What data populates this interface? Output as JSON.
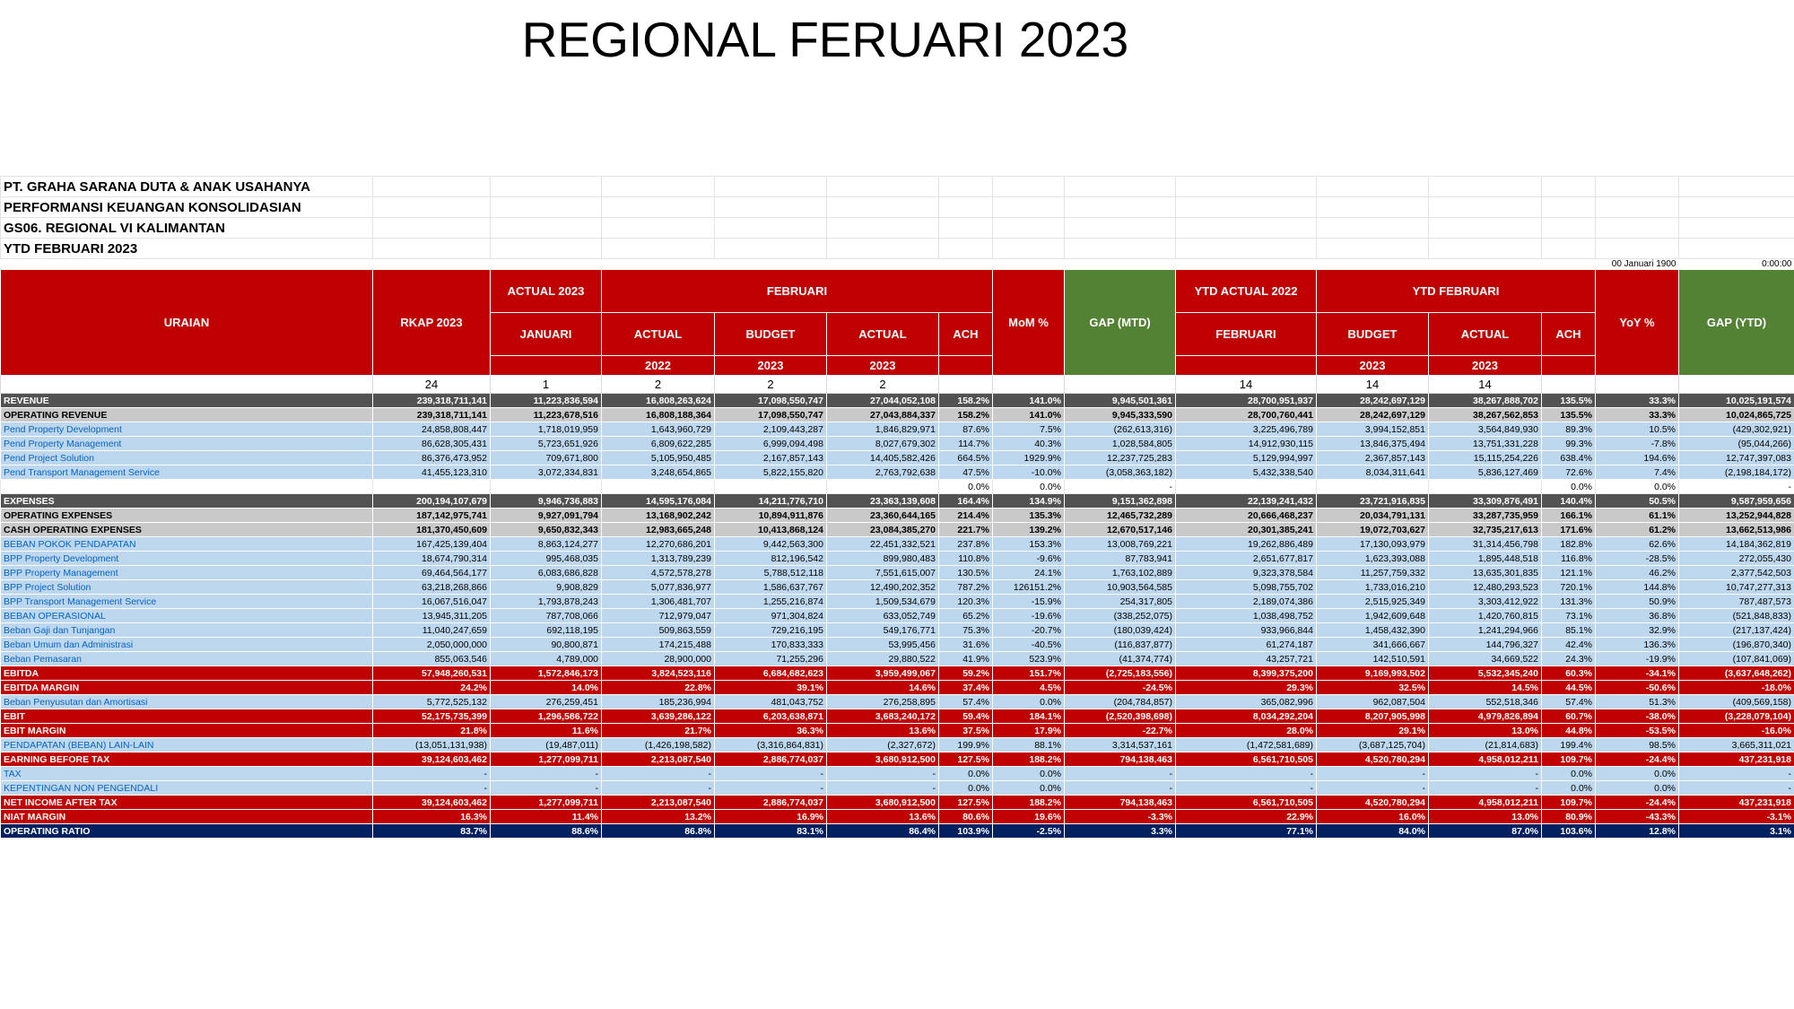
{
  "slide_title": "REGIONAL FERUARI 2023",
  "info_lines": [
    "PT. GRAHA SARANA DUTA & ANAK USAHANYA",
    "PERFORMANSI KEUANGAN KONSOLIDASIAN",
    "GS06. REGIONAL VI KALIMANTAN",
    "YTD FEBRUARI 2023"
  ],
  "date_cells": [
    "00 Januari 1900",
    "0:00:00"
  ],
  "header": {
    "uraian": "URAIAN",
    "rkap": "RKAP 2023",
    "actual_2023": "ACTUAL 2023",
    "februari": "FEBRUARI",
    "mom": "MoM %",
    "gap_mtd": "GAP (MTD)",
    "ytd_actual_2022": "YTD ACTUAL 2022",
    "ytd_februari": "YTD FEBRUARI",
    "yoy": "YoY %",
    "gap_ytd": "GAP (YTD)",
    "januari": "JANUARI",
    "actual": "ACTUAL",
    "budget": "BUDGET",
    "ach": "ACH",
    "feb_sub": "FEBRUARI",
    "y2022": "2022",
    "y2023": "2023"
  },
  "col_numbers": [
    "24",
    "1",
    "2",
    "2",
    "2",
    "14",
    "14",
    "14"
  ],
  "rows": [
    {
      "style": "grey",
      "indent": false,
      "cells": [
        "REVENUE",
        "239,318,711,141",
        "11,223,836,594",
        "16,808,263,624",
        "17,098,550,747",
        "27,044,052,108",
        "158.2%",
        "141.0%",
        "9,945,501,361",
        "28,700,951,937",
        "28,242,697,129",
        "38,267,888,702",
        "135.5%",
        "33.3%",
        "10,025,191,574"
      ]
    },
    {
      "style": "lgrey",
      "indent": false,
      "cells": [
        "OPERATING REVENUE",
        "239,318,711,141",
        "11,223,678,516",
        "16,808,188,364",
        "17,098,550,747",
        "27,043,884,337",
        "158.2%",
        "141.0%",
        "9,945,333,590",
        "28,700,760,441",
        "28,242,697,129",
        "38,267,562,853",
        "135.5%",
        "33.3%",
        "10,024,865,725"
      ]
    },
    {
      "style": "blue",
      "indent": true,
      "cells": [
        "Pend Property Development",
        "24,858,808,447",
        "1,718,019,959",
        "1,643,960,729",
        "2,109,443,287",
        "1,846,829,971",
        "87.6%",
        "7.5%",
        "(262,613,316)",
        "3,225,496,789",
        "3,994,152,851",
        "3,564,849,930",
        "89.3%",
        "10.5%",
        "(429,302,921)"
      ]
    },
    {
      "style": "blue",
      "indent": true,
      "cells": [
        "Pend Property Management",
        "86,628,305,431",
        "5,723,651,926",
        "6,809,622,285",
        "6,999,094,498",
        "8,027,679,302",
        "114.7%",
        "40.3%",
        "1,028,584,805",
        "14,912,930,115",
        "13,846,375,494",
        "13,751,331,228",
        "99.3%",
        "-7.8%",
        "(95,044,266)"
      ]
    },
    {
      "style": "blue",
      "indent": true,
      "cells": [
        "Pend Project Solution",
        "86,376,473,952",
        "709,671,800",
        "5,105,950,485",
        "2,167,857,143",
        "14,405,582,426",
        "664.5%",
        "1929.9%",
        "12,237,725,283",
        "5,129,994,997",
        "2,367,857,143",
        "15,115,254,226",
        "638.4%",
        "194.6%",
        "12,747,397,083"
      ]
    },
    {
      "style": "blue",
      "indent": true,
      "cells": [
        "Pend Transport Management Service",
        "41,455,123,310",
        "3,072,334,831",
        "3,248,654,865",
        "5,822,155,820",
        "2,763,792,638",
        "47.5%",
        "-10.0%",
        "(3,058,363,182)",
        "5,432,338,540",
        "8,034,311,641",
        "5,836,127,469",
        "72.6%",
        "7.4%",
        "(2,198,184,172)"
      ]
    },
    {
      "style": "white",
      "indent": false,
      "cells": [
        "",
        "",
        "",
        "",
        "",
        "",
        "0.0%",
        "0.0%",
        "-",
        "",
        "",
        "",
        "0.0%",
        "0.0%",
        "-"
      ]
    },
    {
      "style": "grey",
      "indent": false,
      "cells": [
        "EXPENSES",
        "200,194,107,679",
        "9,946,736,883",
        "14,595,176,084",
        "14,211,776,710",
        "23,363,139,608",
        "164.4%",
        "134.9%",
        "9,151,362,898",
        "22,139,241,432",
        "23,721,916,835",
        "33,309,876,491",
        "140.4%",
        "50.5%",
        "9,587,959,656"
      ]
    },
    {
      "style": "lgrey",
      "indent": false,
      "cells": [
        "OPERATING EXPENSES",
        "187,142,975,741",
        "9,927,091,794",
        "13,168,902,242",
        "10,894,911,876",
        "23,360,644,165",
        "214.4%",
        "135.3%",
        "12,465,732,289",
        "20,666,468,237",
        "20,034,791,131",
        "33,287,735,959",
        "166.1%",
        "61.1%",
        "13,252,944,828"
      ]
    },
    {
      "style": "lgrey",
      "indent": false,
      "cells": [
        "CASH OPERATING EXPENSES",
        "181,370,450,609",
        "9,650,832,343",
        "12,983,665,248",
        "10,413,868,124",
        "23,084,385,270",
        "221.7%",
        "139.2%",
        "12,670,517,146",
        "20,301,385,241",
        "19,072,703,627",
        "32,735,217,613",
        "171.6%",
        "61.2%",
        "13,662,513,986"
      ]
    },
    {
      "style": "blue",
      "indent": false,
      "cells": [
        "BEBAN POKOK PENDAPATAN",
        "167,425,139,404",
        "8,863,124,277",
        "12,270,686,201",
        "9,442,563,300",
        "22,451,332,521",
        "237.8%",
        "153.3%",
        "13,008,769,221",
        "19,262,886,489",
        "17,130,093,979",
        "31,314,456,798",
        "182.8%",
        "62.6%",
        "14,184,362,819"
      ]
    },
    {
      "style": "blue",
      "indent": true,
      "cells": [
        "BPP Property Development",
        "18,674,790,314",
        "995,468,035",
        "1,313,789,239",
        "812,196,542",
        "899,980,483",
        "110.8%",
        "-9.6%",
        "87,783,941",
        "2,651,677,817",
        "1,623,393,088",
        "1,895,448,518",
        "116.8%",
        "-28.5%",
        "272,055,430"
      ]
    },
    {
      "style": "blue",
      "indent": true,
      "cells": [
        "BPP Property Management",
        "69,464,564,177",
        "6,083,686,828",
        "4,572,578,278",
        "5,788,512,118",
        "7,551,615,007",
        "130.5%",
        "24.1%",
        "1,763,102,889",
        "9,323,378,584",
        "11,257,759,332",
        "13,635,301,835",
        "121.1%",
        "46.2%",
        "2,377,542,503"
      ]
    },
    {
      "style": "blue",
      "indent": true,
      "cells": [
        "BPP Project Solution",
        "63,218,268,866",
        "9,908,829",
        "5,077,836,977",
        "1,586,637,767",
        "12,490,202,352",
        "787.2%",
        "126151.2%",
        "10,903,564,585",
        "5,098,755,702",
        "1,733,016,210",
        "12,480,293,523",
        "720.1%",
        "144.8%",
        "10,747,277,313"
      ]
    },
    {
      "style": "blue",
      "indent": true,
      "cells": [
        "BPP Transport Management Service",
        "16,067,516,047",
        "1,793,878,243",
        "1,306,481,707",
        "1,255,216,874",
        "1,509,534,679",
        "120.3%",
        "-15.9%",
        "254,317,805",
        "2,189,074,386",
        "2,515,925,349",
        "3,303,412,922",
        "131.3%",
        "50.9%",
        "787,487,573"
      ]
    },
    {
      "style": "blue",
      "indent": false,
      "cells": [
        "BEBAN OPERASIONAL",
        "13,945,311,205",
        "787,708,066",
        "712,979,047",
        "971,304,824",
        "633,052,749",
        "65.2%",
        "-19.6%",
        "(338,252,075)",
        "1,038,498,752",
        "1,942,609,648",
        "1,420,760,815",
        "73.1%",
        "36.8%",
        "(521,848,833)"
      ]
    },
    {
      "style": "blue",
      "indent": true,
      "cells": [
        "Beban Gaji dan Tunjangan",
        "11,040,247,659",
        "692,118,195",
        "509,863,559",
        "729,216,195",
        "549,176,771",
        "75.3%",
        "-20.7%",
        "(180,039,424)",
        "933,966,844",
        "1,458,432,390",
        "1,241,294,966",
        "85.1%",
        "32.9%",
        "(217,137,424)"
      ]
    },
    {
      "style": "blue",
      "indent": true,
      "cells": [
        "Beban Umum dan Administrasi",
        "2,050,000,000",
        "90,800,871",
        "174,215,488",
        "170,833,333",
        "53,995,456",
        "31.6%",
        "-40.5%",
        "(116,837,877)",
        "61,274,187",
        "341,666,667",
        "144,796,327",
        "42.4%",
        "136.3%",
        "(196,870,340)"
      ]
    },
    {
      "style": "blue",
      "indent": true,
      "cells": [
        "Beban Pemasaran",
        "855,063,546",
        "4,789,000",
        "28,900,000",
        "71,255,296",
        "29,880,522",
        "41.9%",
        "523.9%",
        "(41,374,774)",
        "43,257,721",
        "142,510,591",
        "34,669,522",
        "24.3%",
        "-19.9%",
        "(107,841,069)"
      ]
    },
    {
      "style": "red",
      "indent": false,
      "cells": [
        "EBITDA",
        "57,948,260,531",
        "1,572,846,173",
        "3,824,523,116",
        "6,684,682,623",
        "3,959,499,067",
        "59.2%",
        "151.7%",
        "(2,725,183,556)",
        "8,399,375,200",
        "9,169,993,502",
        "5,532,345,240",
        "60.3%",
        "-34.1%",
        "(3,637,648,262)"
      ]
    },
    {
      "style": "red",
      "indent": false,
      "cells": [
        "EBITDA MARGIN",
        "24.2%",
        "14.0%",
        "22.8%",
        "39.1%",
        "14.6%",
        "37.4%",
        "4.5%",
        "-24.5%",
        "29.3%",
        "32.5%",
        "14.5%",
        "44.5%",
        "-50.6%",
        "-18.0%"
      ]
    },
    {
      "style": "blue",
      "indent": true,
      "cells": [
        "Beban Penyusutan dan Amortisasi",
        "5,772,525,132",
        "276,259,451",
        "185,236,994",
        "481,043,752",
        "276,258,895",
        "57.4%",
        "0.0%",
        "(204,784,857)",
        "365,082,996",
        "962,087,504",
        "552,518,346",
        "57.4%",
        "51.3%",
        "(409,569,158)"
      ]
    },
    {
      "style": "red",
      "indent": false,
      "cells": [
        "EBIT",
        "52,175,735,399",
        "1,296,586,722",
        "3,639,286,122",
        "6,203,638,871",
        "3,683,240,172",
        "59.4%",
        "184.1%",
        "(2,520,398,698)",
        "8,034,292,204",
        "8,207,905,998",
        "4,979,826,894",
        "60.7%",
        "-38.0%",
        "(3,228,079,104)"
      ]
    },
    {
      "style": "red",
      "indent": false,
      "cells": [
        "EBIT MARGIN",
        "21.8%",
        "11.6%",
        "21.7%",
        "36.3%",
        "13.6%",
        "37.5%",
        "17.9%",
        "-22.7%",
        "28.0%",
        "29.1%",
        "13.0%",
        "44.8%",
        "-53.5%",
        "-16.0%"
      ]
    },
    {
      "style": "blue",
      "indent": false,
      "cells": [
        "PENDAPATAN (BEBAN) LAIN-LAIN",
        "(13,051,131,938)",
        "(19,487,011)",
        "(1,426,198,582)",
        "(3,316,864,831)",
        "(2,327,672)",
        "199.9%",
        "88.1%",
        "3,314,537,161",
        "(1,472,581,689)",
        "(3,687,125,704)",
        "(21,814,683)",
        "199.4%",
        "98.5%",
        "3,665,311,021"
      ]
    },
    {
      "style": "red",
      "indent": false,
      "cells": [
        "EARNING BEFORE TAX",
        "39,124,603,462",
        "1,277,099,711",
        "2,213,087,540",
        "2,886,774,037",
        "3,680,912,500",
        "127.5%",
        "188.2%",
        "794,138,463",
        "6,561,710,505",
        "4,520,780,294",
        "4,958,012,211",
        "109.7%",
        "-24.4%",
        "437,231,918"
      ]
    },
    {
      "style": "blue",
      "indent": false,
      "cells": [
        "TAX",
        "-",
        "-",
        "-",
        "-",
        "-",
        "0.0%",
        "0.0%",
        "-",
        "-",
        "-",
        "-",
        "0.0%",
        "0.0%",
        "-"
      ]
    },
    {
      "style": "blue",
      "indent": false,
      "cells": [
        "KEPENTINGAN NON PENGENDALI",
        "-",
        "-",
        "-",
        "-",
        "-",
        "0.0%",
        "0.0%",
        "-",
        "-",
        "-",
        "-",
        "0.0%",
        "0.0%",
        "-"
      ]
    },
    {
      "style": "red",
      "indent": false,
      "cells": [
        "NET INCOME AFTER TAX",
        "39,124,603,462",
        "1,277,099,711",
        "2,213,087,540",
        "2,886,774,037",
        "3,680,912,500",
        "127.5%",
        "188.2%",
        "794,138,463",
        "6,561,710,505",
        "4,520,780,294",
        "4,958,012,211",
        "109.7%",
        "-24.4%",
        "437,231,918"
      ]
    },
    {
      "style": "red",
      "indent": false,
      "cells": [
        "NIAT MARGIN",
        "16.3%",
        "11.4%",
        "13.2%",
        "16.9%",
        "13.6%",
        "80.6%",
        "19.6%",
        "-3.3%",
        "22.9%",
        "16.0%",
        "13.0%",
        "80.9%",
        "-43.3%",
        "-3.1%"
      ]
    },
    {
      "style": "navy",
      "indent": false,
      "cells": [
        "OPERATING RATIO",
        "83.7%",
        "88.6%",
        "86.8%",
        "83.1%",
        "86.4%",
        "103.9%",
        "-2.5%",
        "3.3%",
        "77.1%",
        "84.0%",
        "87.0%",
        "103.6%",
        "12.8%",
        "3.1%"
      ]
    }
  ],
  "colors": {
    "header_red": "#c00000",
    "header_green": "#548235",
    "row_grey": "#525252",
    "row_light_grey": "#c9c9c9",
    "row_blue": "#bdd7ee",
    "row_navy": "#002060"
  }
}
